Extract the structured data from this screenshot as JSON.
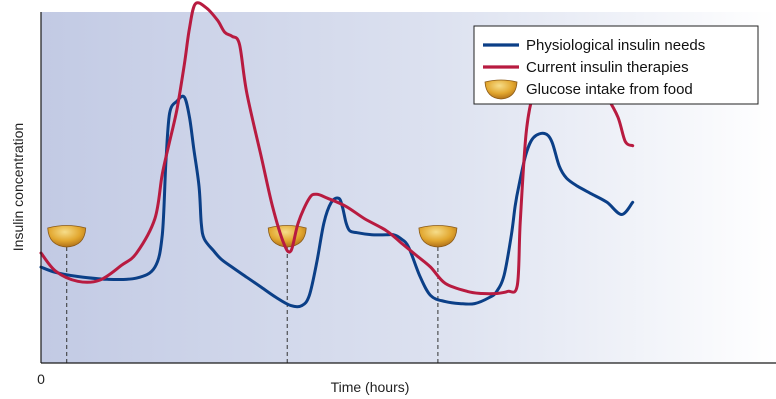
{
  "chart_data": {
    "type": "line",
    "title": "",
    "xlabel": "Time (hours)",
    "ylabel": "Insulin concentration",
    "xtick_labels": [
      "0"
    ],
    "xlim": [
      0,
      100
    ],
    "ylim": [
      0,
      100
    ],
    "grid": false,
    "legend_position": "top-right",
    "meal_label": "Glucose intake from food",
    "meals_x": [
      3.5,
      33.5,
      54
    ],
    "series": [
      {
        "name": "Physiological insulin needs",
        "color": "#0b3f87",
        "x": [
          0,
          2,
          5,
          9,
          13,
          15.5,
          16.5,
          17,
          17.5,
          18.5,
          19.5,
          20.2,
          20.8,
          21.5,
          21.8,
          22.2,
          23.5,
          24.5,
          26,
          28,
          30,
          32,
          34,
          35.5,
          36.5,
          37.5,
          38.5,
          39.5,
          40.5,
          41,
          41.5,
          42,
          43,
          45,
          47,
          48,
          49,
          50,
          51.5,
          53,
          55,
          57,
          59,
          61,
          62,
          63,
          64,
          64.5,
          65,
          66,
          67,
          68.5,
          69.5,
          70.5,
          71.5,
          73,
          75,
          77,
          79,
          80.5
        ],
        "values": [
          17,
          15.7,
          14.7,
          14,
          14.3,
          17,
          25,
          43,
          55,
          58,
          59,
          54,
          46,
          37,
          28,
          24,
          21,
          19,
          17,
          14.5,
          12,
          9.5,
          7.5,
          7.5,
          10,
          18,
          28,
          33,
          34,
          32,
          28,
          26,
          25.5,
          25,
          25,
          25,
          24,
          22,
          15,
          10,
          8.5,
          8,
          8,
          9.5,
          11,
          15,
          25,
          32,
          37,
          45,
          49,
          50,
          48,
          42,
          39,
          37,
          35,
          33,
          30,
          33
        ]
      },
      {
        "name": "Current insulin therapies",
        "color": "#b81b40",
        "x": [
          0,
          2,
          5,
          8,
          11,
          13,
          15.5,
          16.5,
          17.5,
          18.5,
          19.5,
          20.2,
          21,
          22.5,
          24,
          25,
          26,
          27,
          28,
          30,
          31.5,
          33,
          34,
          35,
          36.5,
          37.5,
          39,
          41.5,
          44,
          47,
          49,
          51,
          53,
          55,
          58,
          60,
          62,
          63.5,
          64.8,
          65.2,
          66,
          67,
          68,
          70,
          71.5,
          72,
          73,
          75,
          77,
          78.5,
          79.5,
          80.5
        ],
        "values": [
          20.5,
          16,
          13.5,
          13.8,
          17.5,
          20.5,
          29,
          40,
          48,
          56,
          67,
          76,
          82,
          81,
          78,
          75,
          74,
          72,
          60,
          44,
          32,
          23,
          21,
          28,
          34,
          35,
          34,
          32,
          29,
          26,
          23,
          20,
          17,
          13,
          11,
          10.5,
          10.5,
          11,
          12.5,
          28,
          50,
          60,
          62,
          63,
          65,
          66,
          67,
          64,
          59,
          54,
          48,
          47
        ]
      }
    ]
  }
}
